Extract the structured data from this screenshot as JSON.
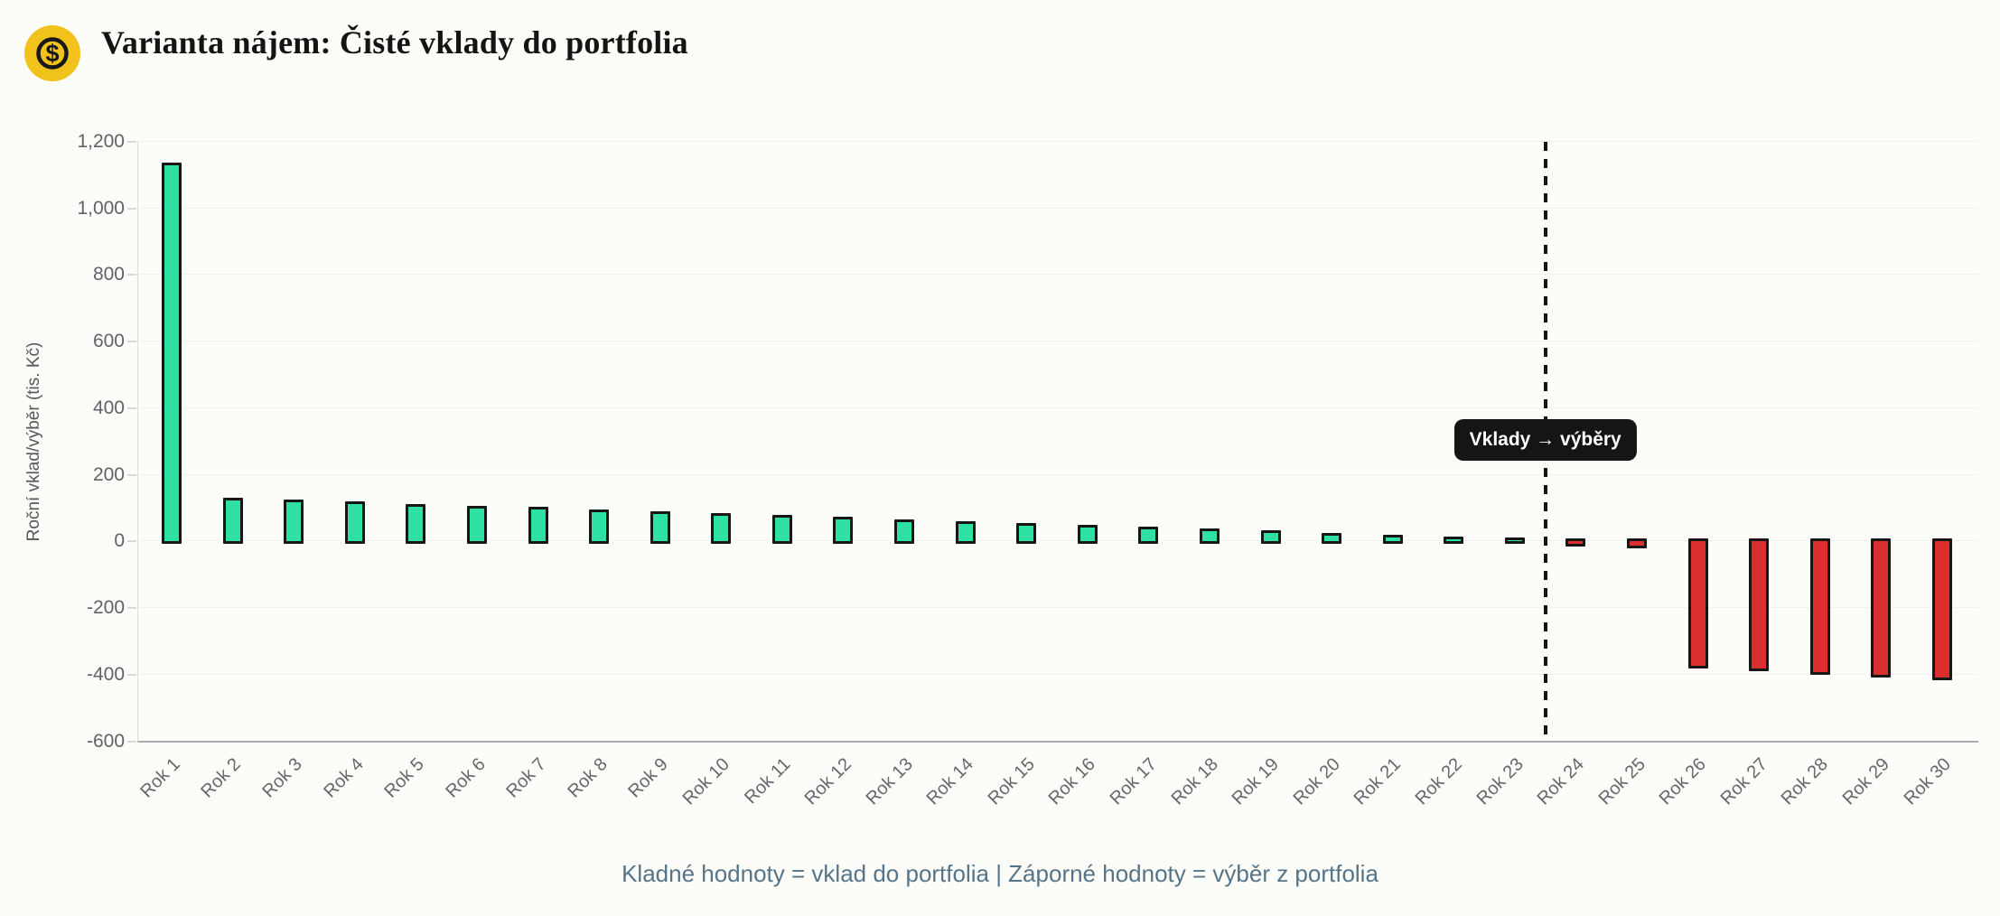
{
  "header": {
    "icon": "dollar-coin-icon",
    "icon_color": "#f1c21b",
    "title": "Varianta nájem: Čisté vklady do portfolia"
  },
  "chart_data": {
    "type": "bar",
    "title": "Varianta nájem: Čisté vklady do portfolia",
    "xlabel": "",
    "ylabel": "Roční vklad/výběr (tis. Kč)",
    "ylim": [
      -600,
      1200
    ],
    "ytick_step": 200,
    "yticks": [
      1200,
      1000,
      800,
      600,
      400,
      200,
      0,
      -200,
      -400,
      -600
    ],
    "ytick_labels": [
      "1,200",
      "1,000",
      "800",
      "600",
      "400",
      "200",
      "0",
      "-200",
      "-400",
      "-600"
    ],
    "grid": true,
    "legend": false,
    "categories": [
      "Rok 1",
      "Rok 2",
      "Rok 3",
      "Rok 4",
      "Rok 5",
      "Rok 6",
      "Rok 7",
      "Rok 8",
      "Rok 9",
      "Rok 10",
      "Rok 11",
      "Rok 12",
      "Rok 13",
      "Rok 14",
      "Rok 15",
      "Rok 16",
      "Rok 17",
      "Rok 18",
      "Rok 19",
      "Rok 20",
      "Rok 21",
      "Rok 22",
      "Rok 23",
      "Rok 24",
      "Rok 25",
      "Rok 26",
      "Rok 27",
      "Rok 28",
      "Rok 29",
      "Rok 30"
    ],
    "values": [
      1130,
      123,
      118,
      111,
      105,
      99,
      95,
      88,
      82,
      77,
      71,
      65,
      59,
      53,
      48,
      43,
      37,
      30,
      25,
      18,
      11,
      7,
      4,
      -7,
      -12,
      -373,
      -382,
      -391,
      -400,
      -409
    ],
    "positive_color": "#2ee0a1",
    "negative_color": "#db2f2f",
    "bar_border_color": "#161616",
    "annotation": {
      "label": "Vklady → výběry",
      "after_category": "Rok 23",
      "line_style": "dashed-vertical"
    }
  },
  "footer": {
    "caption": "Kladné hodnoty = vklad do portfolia | Záporné hodnoty = výběr z portfolia"
  }
}
